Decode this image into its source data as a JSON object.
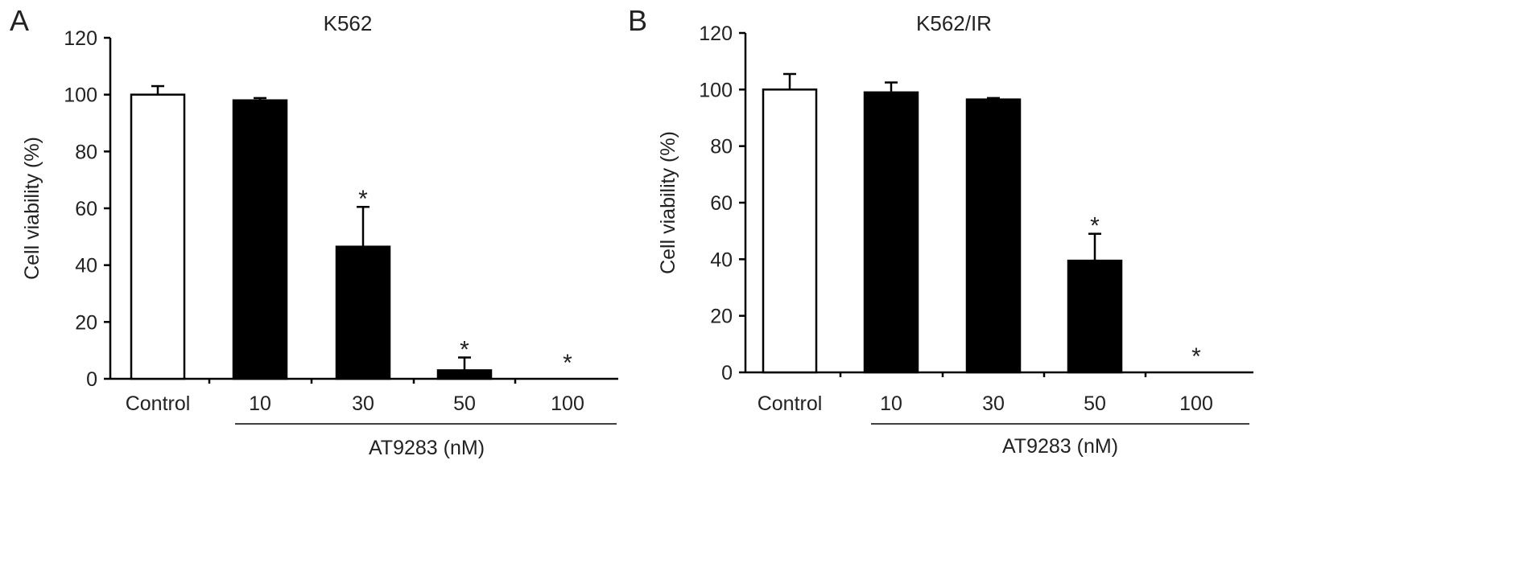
{
  "chart_data": [
    {
      "type": "bar",
      "panel_label": "A",
      "title": "K562",
      "ylabel": "Cell viability (%)",
      "group_label": "AT9283 (nM)",
      "ylim": [
        0,
        120
      ],
      "yticks": [
        "0",
        "20",
        "40",
        "60",
        "80",
        "100",
        "120"
      ],
      "categories": [
        "Control",
        "10",
        "30",
        "50",
        "100"
      ],
      "values": [
        100,
        98,
        46.5,
        3,
        0
      ],
      "errors": [
        3,
        0.8,
        14,
        4.5,
        0
      ],
      "significance": [
        "",
        "",
        "*",
        "*",
        "*"
      ],
      "bar_fill": [
        "#ffffff",
        "#000000",
        "#000000",
        "#000000",
        "#000000"
      ],
      "grid": false
    },
    {
      "type": "bar",
      "panel_label": "B",
      "title": "K562/IR",
      "ylabel": "Cell viability (%)",
      "group_label": "AT9283 (nM)",
      "ylim": [
        0,
        120
      ],
      "yticks": [
        "0",
        "20",
        "40",
        "60",
        "80",
        "100",
        "120"
      ],
      "categories": [
        "Control",
        "10",
        "30",
        "50",
        "100"
      ],
      "values": [
        100,
        99,
        96.5,
        39.5,
        0
      ],
      "errors": [
        5.5,
        3.5,
        0.5,
        9.5,
        0
      ],
      "significance": [
        "",
        "",
        "",
        "*",
        "*"
      ],
      "bar_fill": [
        "#ffffff",
        "#000000",
        "#000000",
        "#000000",
        "#000000"
      ],
      "grid": false
    }
  ]
}
